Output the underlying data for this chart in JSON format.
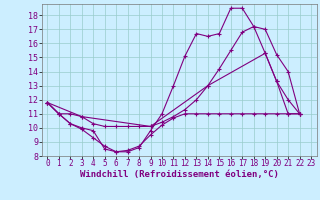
{
  "bg_color": "#cceeff",
  "line_color": "#800080",
  "grid_color": "#99cccc",
  "xlabel": "Windchill (Refroidissement éolien,°C)",
  "xlabel_fontsize": 6.5,
  "xtick_fontsize": 5.5,
  "ytick_fontsize": 6,
  "xlim": [
    -0.5,
    23.5
  ],
  "ylim": [
    8,
    18.8
  ],
  "yticks": [
    8,
    9,
    10,
    11,
    12,
    13,
    14,
    15,
    16,
    17,
    18
  ],
  "xticks": [
    0,
    1,
    2,
    3,
    4,
    5,
    6,
    7,
    8,
    9,
    10,
    11,
    12,
    13,
    14,
    15,
    16,
    17,
    18,
    19,
    20,
    21,
    22,
    23
  ],
  "series": [
    {
      "x": [
        0,
        1,
        2,
        3,
        4,
        5,
        6,
        7,
        8,
        9,
        10,
        11,
        12,
        13,
        14,
        15,
        16,
        17,
        18,
        19,
        20,
        21,
        22
      ],
      "y": [
        11.8,
        11.0,
        10.3,
        9.9,
        9.3,
        8.7,
        8.3,
        8.3,
        8.6,
        9.8,
        11.0,
        13.0,
        15.1,
        16.7,
        16.5,
        16.7,
        18.5,
        18.5,
        17.2,
        15.3,
        13.3,
        12.0,
        11.0
      ]
    },
    {
      "x": [
        0,
        3,
        9,
        14,
        19,
        20,
        21,
        22
      ],
      "y": [
        11.8,
        10.8,
        10.1,
        13.0,
        15.3,
        13.3,
        11.0,
        11.0
      ]
    },
    {
      "x": [
        0,
        1,
        2,
        3,
        4,
        5,
        6,
        7,
        8,
        9,
        10,
        11,
        12,
        13,
        14,
        15,
        16,
        17,
        18,
        19,
        20,
        21,
        22
      ],
      "y": [
        11.8,
        11.0,
        11.0,
        10.8,
        10.3,
        10.1,
        10.1,
        10.1,
        10.1,
        10.1,
        10.4,
        10.8,
        11.3,
        12.0,
        13.0,
        14.2,
        15.5,
        16.8,
        17.2,
        17.0,
        15.2,
        14.0,
        11.0
      ]
    },
    {
      "x": [
        0,
        1,
        2,
        3,
        4,
        5,
        6,
        7,
        8,
        9,
        10,
        11,
        12,
        13,
        14,
        15,
        16,
        17,
        18,
        19,
        20,
        21,
        22
      ],
      "y": [
        11.8,
        11.0,
        10.3,
        10.0,
        9.8,
        8.5,
        8.3,
        8.4,
        8.7,
        9.5,
        10.2,
        10.7,
        11.0,
        11.0,
        11.0,
        11.0,
        11.0,
        11.0,
        11.0,
        11.0,
        11.0,
        11.0,
        11.0
      ]
    }
  ]
}
